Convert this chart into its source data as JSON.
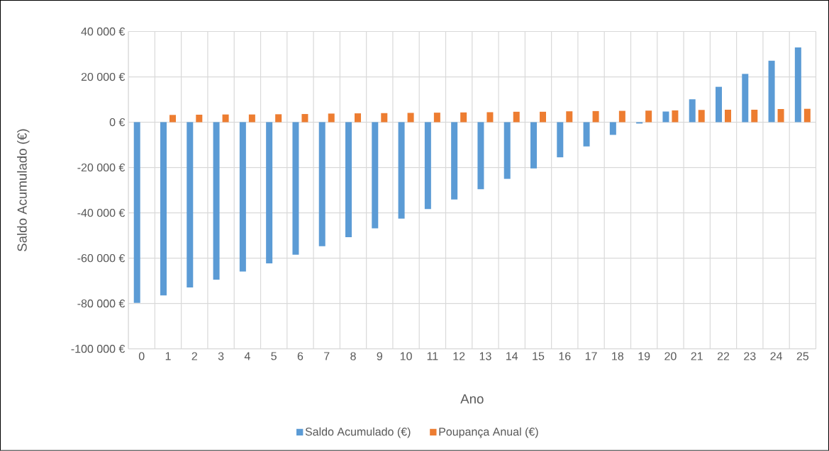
{
  "chart_data": {
    "type": "bar",
    "xlabel": "Ano",
    "ylabel": "Saldo Acumulado (€)",
    "categories": [
      "0",
      "1",
      "2",
      "3",
      "4",
      "5",
      "6",
      "7",
      "8",
      "9",
      "10",
      "11",
      "12",
      "13",
      "14",
      "15",
      "16",
      "17",
      "18",
      "19",
      "20",
      "21",
      "22",
      "23",
      "24",
      "25"
    ],
    "series": [
      {
        "name": "Saldo Acumulado (€)",
        "color": "#5b9bd5",
        "values": [
          -79700,
          -76400,
          -72900,
          -69500,
          -65900,
          -62300,
          -58500,
          -54700,
          -50700,
          -46800,
          -42500,
          -38300,
          -34100,
          -29600,
          -25000,
          -20400,
          -15500,
          -10700,
          -5600,
          -600,
          4700,
          10100,
          15600,
          21300,
          27100,
          33000
        ]
      },
      {
        "name": "Poupança Anual (€)",
        "color": "#ed7d31",
        "values": [
          null,
          3200,
          3300,
          3400,
          3400,
          3500,
          3600,
          3800,
          3900,
          4000,
          4100,
          4200,
          4300,
          4400,
          4600,
          4600,
          4800,
          4900,
          5000,
          5100,
          5200,
          5400,
          5500,
          5500,
          5800,
          5900
        ]
      }
    ],
    "ylim": [
      -100000,
      40000
    ],
    "yticks": [
      {
        "value": -100000,
        "label": "-100 000 €"
      },
      {
        "value": -80000,
        "label": "-80 000 €"
      },
      {
        "value": -60000,
        "label": "-60 000 €"
      },
      {
        "value": -40000,
        "label": "-40 000 €"
      },
      {
        "value": -20000,
        "label": "-20 000 €"
      },
      {
        "value": 0,
        "label": "0 €"
      },
      {
        "value": 20000,
        "label": "20 000 €"
      },
      {
        "value": 40000,
        "label": "40 000 €"
      }
    ],
    "grid": true,
    "legend": "bottom"
  }
}
